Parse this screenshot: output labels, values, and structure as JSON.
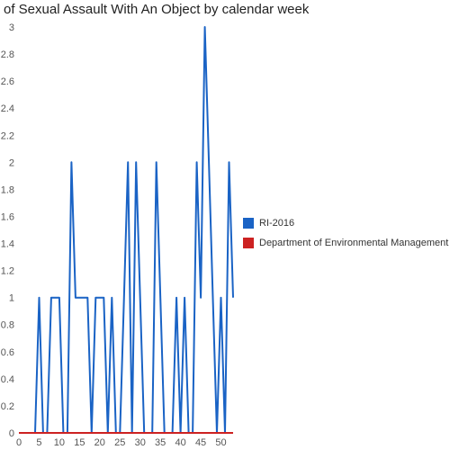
{
  "chart_data": {
    "type": "line",
    "title": "of Sexual Assault With An Object by calendar week",
    "xlabel": "",
    "ylabel": "",
    "xlim": [
      0,
      53
    ],
    "ylim": [
      0,
      3
    ],
    "x_ticks": [
      "0",
      "5",
      "10",
      "15",
      "20",
      "25",
      "30",
      "35",
      "40",
      "45",
      "50"
    ],
    "y_ticks": [
      "0",
      "0.2",
      "0.4",
      "0.6",
      "0.8",
      "1",
      "1.2",
      "1.4",
      "1.6",
      "1.8",
      "2",
      "2.2",
      "2.4",
      "2.6",
      "2.8",
      "3"
    ],
    "legend_position": "right",
    "grid": false,
    "series": [
      {
        "name": "RI-2016",
        "color": "#1a63c5",
        "points": [
          [
            0,
            0
          ],
          [
            1,
            0
          ],
          [
            2,
            0
          ],
          [
            3,
            0
          ],
          [
            4,
            0
          ],
          [
            5,
            1
          ],
          [
            6,
            0
          ],
          [
            7,
            0
          ],
          [
            8,
            1
          ],
          [
            9,
            1
          ],
          [
            10,
            1
          ],
          [
            11,
            0
          ],
          [
            12,
            0
          ],
          [
            13,
            2
          ],
          [
            14,
            1
          ],
          [
            15,
            1
          ],
          [
            16,
            1
          ],
          [
            17,
            1
          ],
          [
            18,
            0
          ],
          [
            19,
            1
          ],
          [
            20,
            1
          ],
          [
            21,
            1
          ],
          [
            22,
            0
          ],
          [
            23,
            1
          ],
          [
            24,
            0
          ],
          [
            25,
            0
          ],
          [
            26,
            1
          ],
          [
            27,
            2
          ],
          [
            28,
            0
          ],
          [
            29,
            2
          ],
          [
            30,
            1
          ],
          [
            31,
            0
          ],
          [
            32,
            0
          ],
          [
            33,
            0
          ],
          [
            34,
            2
          ],
          [
            35,
            1
          ],
          [
            36,
            0
          ],
          [
            37,
            0
          ],
          [
            38,
            0
          ],
          [
            39,
            1
          ],
          [
            40,
            0
          ],
          [
            41,
            1
          ],
          [
            42,
            0
          ],
          [
            43,
            0
          ],
          [
            44,
            2
          ],
          [
            45,
            1
          ],
          [
            46,
            3
          ],
          [
            47,
            2
          ],
          [
            48,
            1
          ],
          [
            49,
            0
          ],
          [
            50,
            1
          ],
          [
            51,
            0
          ],
          [
            52,
            2
          ],
          [
            53,
            1
          ]
        ]
      },
      {
        "name": "Department of Environmental Management",
        "color": "#cc2222",
        "points": [
          [
            0,
            0
          ],
          [
            53,
            0
          ]
        ]
      }
    ]
  }
}
